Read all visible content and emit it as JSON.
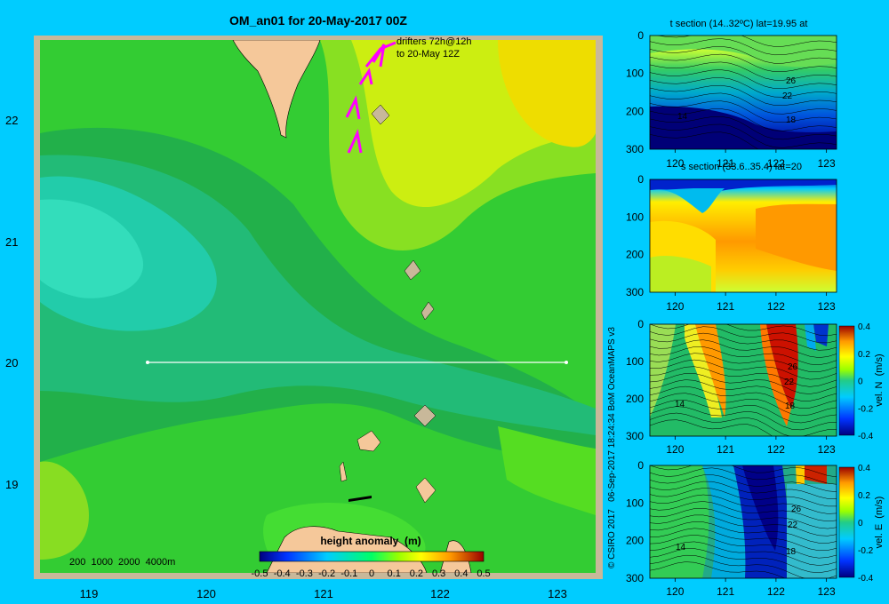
{
  "colors": {
    "background": "#00ccff",
    "map_frame": "#c8b89a",
    "land": "#f5c89a",
    "drifter": "#ff00ff",
    "section_line": "#ffffff"
  },
  "chart_data": [
    {
      "type": "heatmap",
      "title": "OM_an01 for 20-May-2017 00Z",
      "xlim": [
        118.5,
        123.5
      ],
      "ylim": [
        18.3,
        22.7
      ],
      "x_ticks": [
        "119",
        "120",
        "121",
        "122",
        "123"
      ],
      "y_ticks": [
        "19",
        "20",
        "21",
        "22"
      ],
      "annotation_drifters": [
        "drifters 72h@12h",
        "to 20-May 12Z"
      ],
      "depth_legend": "200  1000  2000  4000m",
      "section_line": {
        "lat": 20.0,
        "lon_start": 119.5,
        "lon_end": 123.2
      },
      "colorbar": {
        "label": "height anomaly  (m)",
        "ticks": [
          "-0.5",
          "-0.4",
          "-0.3",
          "-0.2",
          "-0.1",
          "0",
          "0.1",
          "0.2",
          "0.3",
          "0.4",
          "0.5"
        ],
        "range": [
          -0.5,
          0.5
        ]
      },
      "field_pattern": "green (~0) across most of domain; yellow-green to orange-yellow (0.2–0.3) in the northeast; cyan-green minimum (~-0.1) centred near 119.6E 21.0N; light green band near 119E 18.8N"
    },
    {
      "type": "heatmap",
      "title": "t section (14..32ºC) lat=19.95 at",
      "xlim": [
        119.5,
        123.2
      ],
      "ylim": [
        0,
        300
      ],
      "x_ticks": [
        "120",
        "121",
        "122",
        "123"
      ],
      "y_ticks": [
        "0",
        "100",
        "200",
        "300"
      ],
      "contour_labels": [
        "26",
        "22",
        "18",
        "14"
      ]
    },
    {
      "type": "heatmap",
      "title": "s section (33.6..35.4) lat=20",
      "xlim": [
        119.5,
        123.2
      ],
      "ylim": [
        0,
        300
      ],
      "x_ticks": [
        "120",
        "121",
        "122",
        "123"
      ],
      "y_ticks": [
        "0",
        "100",
        "200",
        "300"
      ]
    },
    {
      "type": "heatmap",
      "title": "",
      "xlim": [
        119.5,
        123.2
      ],
      "ylim": [
        0,
        300
      ],
      "x_ticks": [
        "120",
        "121",
        "122",
        "123"
      ],
      "y_ticks": [
        "0",
        "100",
        "200",
        "300"
      ],
      "contour_labels": [
        "26",
        "22",
        "18",
        "14"
      ],
      "colorbar": {
        "label": "vel. N  (m/s)",
        "ticks": [
          "0.4",
          "0.2",
          "0",
          "-0.2",
          "-0.4"
        ],
        "range": [
          -0.4,
          0.4
        ]
      }
    },
    {
      "type": "heatmap",
      "title": "",
      "xlim": [
        119.5,
        123.2
      ],
      "ylim": [
        0,
        300
      ],
      "x_ticks": [
        "120",
        "121",
        "122",
        "123"
      ],
      "y_ticks": [
        "0",
        "100",
        "200",
        "300"
      ],
      "contour_labels": [
        "26",
        "22",
        "18",
        "14"
      ],
      "colorbar": {
        "label": "vel. E  (m/s)",
        "ticks": [
          "0.4",
          "0.2",
          "0",
          "-0.2",
          "-0.4"
        ],
        "range": [
          -0.4,
          0.4
        ]
      }
    }
  ],
  "credit": "© CSIRO 2017   06-Sep-2017 18:24:34 BoM OceanMAPS v3"
}
